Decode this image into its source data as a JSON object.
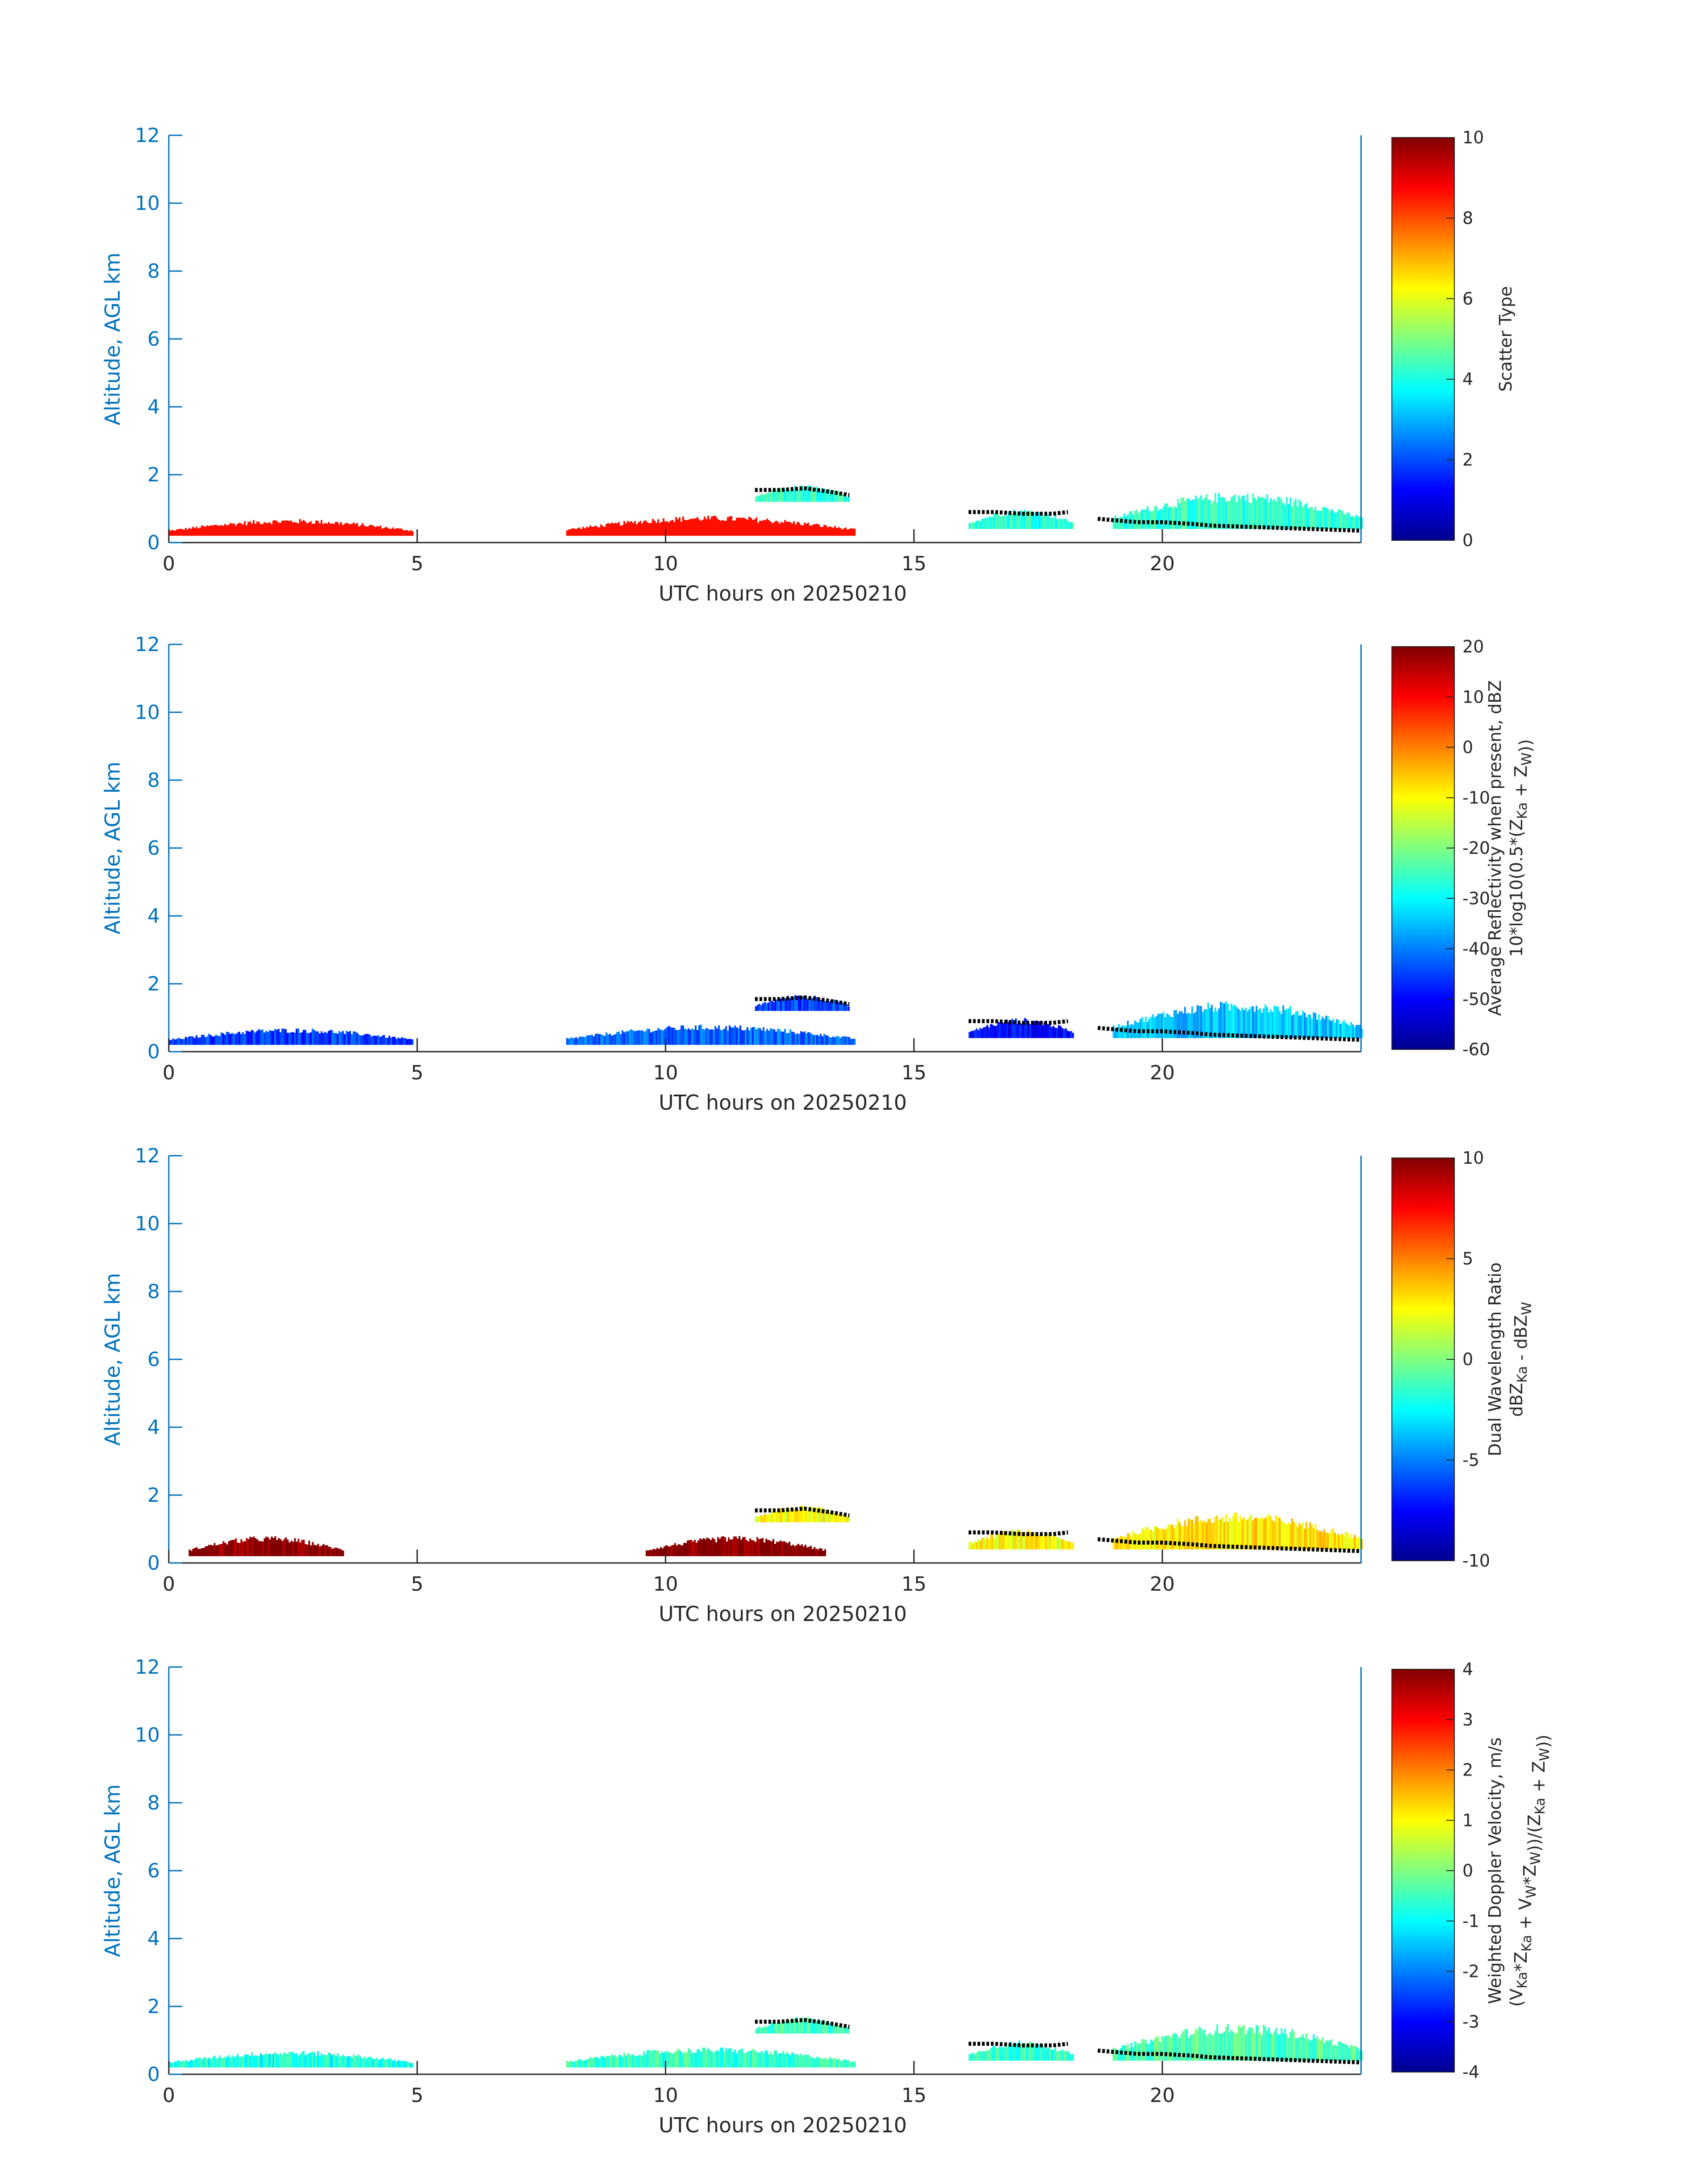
{
  "colors": {
    "axis_blue": "#0072bd",
    "dark_text": "#262626",
    "panel1_precip": "#ff4800",
    "dwr_high": "#800000",
    "dwr_mid": "#ffee00",
    "cloud_top_line": "#000000"
  },
  "colormap": "jet",
  "chart_data": [
    {
      "type": "heatmap",
      "title": "",
      "xlabel": "UTC hours on 20250210",
      "ylabel": "Altitude, AGL km",
      "xlim": [
        0,
        24
      ],
      "ylim": [
        0,
        12
      ],
      "xticks": [
        "0",
        "5",
        "10",
        "15",
        "20"
      ],
      "yticks": [
        "0",
        "2",
        "4",
        "6",
        "8",
        "10",
        "12"
      ],
      "colorbar": {
        "label_lines": [
          "Scatter Type"
        ],
        "range": [
          0,
          10
        ],
        "ticks": [
          "0",
          "2",
          "4",
          "6",
          "8",
          "10"
        ]
      },
      "regions": [
        {
          "x": [
            0,
            4.9
          ],
          "top": 0.7,
          "value": 8.6,
          "note": "low drizzle layer"
        },
        {
          "x": [
            8.0,
            13.8
          ],
          "top": 0.8,
          "value": 8.6
        },
        {
          "x": [
            11.8,
            13.7
          ],
          "bottom": 1.2,
          "top": 1.7,
          "value": 4.2
        },
        {
          "x": [
            16.1,
            18.2
          ],
          "bottom": 0.4,
          "top": 1.0,
          "value": 4.2
        },
        {
          "x": [
            19.0,
            24.0
          ],
          "bottom": 0.4,
          "top": 1.5,
          "value": 4.2
        }
      ]
    },
    {
      "type": "heatmap",
      "title": "",
      "xlabel": "UTC hours on 20250210",
      "ylabel": "Altitude, AGL km",
      "xlim": [
        0,
        24
      ],
      "ylim": [
        0,
        12
      ],
      "xticks": [
        "0",
        "5",
        "10",
        "15",
        "20"
      ],
      "yticks": [
        "0",
        "2",
        "4",
        "6",
        "8",
        "10",
        "12"
      ],
      "colorbar": {
        "label_lines": [
          "Average Reflectivity when present, dBZ",
          "10*log10(0.5*(Z_Ka + Z_W))"
        ],
        "range": [
          -60,
          20
        ],
        "ticks": [
          "-60",
          "-50",
          "-40",
          "-30",
          "-20",
          "-10",
          "0",
          "10",
          "20"
        ]
      },
      "regions": [
        {
          "x": [
            0,
            4.9
          ],
          "top": 0.7,
          "value": -45
        },
        {
          "x": [
            8.0,
            13.8
          ],
          "top": 0.8,
          "value": -42
        },
        {
          "x": [
            11.8,
            13.7
          ],
          "bottom": 1.2,
          "top": 1.7,
          "value": -45
        },
        {
          "x": [
            16.1,
            18.2
          ],
          "bottom": 0.4,
          "top": 1.0,
          "value": -50
        },
        {
          "x": [
            19.0,
            24.0
          ],
          "bottom": 0.4,
          "top": 1.5,
          "value": -35
        }
      ]
    },
    {
      "type": "heatmap",
      "title": "",
      "xlabel": "UTC hours on 20250210",
      "ylabel": "Altitude, AGL km",
      "xlim": [
        0,
        24
      ],
      "ylim": [
        0,
        12
      ],
      "xticks": [
        "0",
        "5",
        "10",
        "15",
        "20"
      ],
      "yticks": [
        "0",
        "2",
        "4",
        "6",
        "8",
        "10",
        "12"
      ],
      "colorbar": {
        "label_lines": [
          "Dual Wavelength Ratio",
          "dBZ_Ka - dBZ_W"
        ],
        "range": [
          -10,
          10
        ],
        "ticks": [
          "-10",
          "-5",
          "0",
          "5",
          "10"
        ]
      },
      "regions": [
        {
          "x": [
            0.4,
            3.5
          ],
          "top": 0.8,
          "value": 10
        },
        {
          "x": [
            9.6,
            13.2
          ],
          "top": 0.8,
          "value": 10
        },
        {
          "x": [
            11.8,
            13.7
          ],
          "bottom": 1.2,
          "top": 1.7,
          "value": 2.5
        },
        {
          "x": [
            16.1,
            18.2
          ],
          "bottom": 0.4,
          "top": 1.0,
          "value": 2.5
        },
        {
          "x": [
            19.0,
            24.0
          ],
          "bottom": 0.4,
          "top": 1.5,
          "value": 3
        }
      ]
    },
    {
      "type": "heatmap",
      "title": "",
      "xlabel": "UTC hours on 20250210",
      "ylabel": "Altitude, AGL km",
      "xlim": [
        0,
        24
      ],
      "ylim": [
        0,
        12
      ],
      "xticks": [
        "0",
        "5",
        "10",
        "15",
        "20"
      ],
      "yticks": [
        "0",
        "2",
        "4",
        "6",
        "8",
        "10",
        "12"
      ],
      "colorbar": {
        "label_lines": [
          "Weighted Doppler Velocity, m/s",
          "(V_Ka*Z_Ka + V_W*Z_W))/(Z_Ka + Z_W))"
        ],
        "range": [
          -4,
          4
        ],
        "ticks": [
          "-4",
          "-3",
          "-2",
          "-1",
          "0",
          "1",
          "2",
          "3",
          "4"
        ]
      },
      "regions": [
        {
          "x": [
            0,
            4.9
          ],
          "top": 0.7,
          "value": -0.8
        },
        {
          "x": [
            8.0,
            13.8
          ],
          "top": 0.8,
          "value": -0.6
        },
        {
          "x": [
            11.8,
            13.7
          ],
          "bottom": 1.2,
          "top": 1.7,
          "value": -0.5
        },
        {
          "x": [
            16.1,
            18.2
          ],
          "bottom": 0.4,
          "top": 1.0,
          "value": -0.6
        },
        {
          "x": [
            19.0,
            24.0
          ],
          "bottom": 0.4,
          "top": 1.5,
          "value": -0.4
        }
      ]
    }
  ],
  "cloud_top_line": {
    "segments": [
      [
        [
          11.8,
          1.55
        ],
        [
          12.3,
          1.55
        ],
        [
          12.8,
          1.6
        ],
        [
          13.3,
          1.5
        ],
        [
          13.7,
          1.4
        ]
      ],
      [
        [
          16.1,
          0.9
        ],
        [
          16.6,
          0.9
        ],
        [
          17.2,
          0.85
        ],
        [
          17.8,
          0.85
        ],
        [
          18.1,
          0.9
        ]
      ],
      [
        [
          18.7,
          0.7
        ],
        [
          19.5,
          0.6
        ],
        [
          20.0,
          0.6
        ],
        [
          20.6,
          0.55
        ],
        [
          21.0,
          0.5
        ],
        [
          22.0,
          0.45
        ],
        [
          23.0,
          0.4
        ],
        [
          24.0,
          0.35
        ]
      ]
    ]
  }
}
